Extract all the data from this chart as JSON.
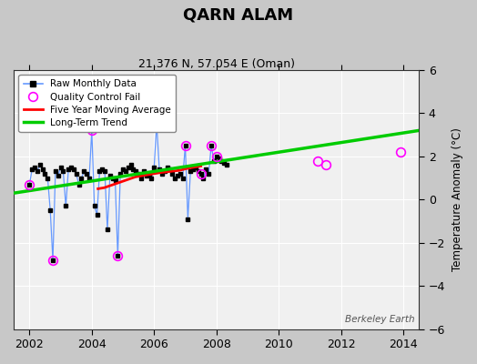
{
  "title": "QARN ALAM",
  "subtitle": "21.376 N, 57.054 E (Oman)",
  "ylabel": "Temperature Anomaly (°C)",
  "watermark": "Berkeley Earth",
  "xlim": [
    2001.5,
    2014.5
  ],
  "ylim": [
    -6,
    6
  ],
  "yticks": [
    -6,
    -4,
    -2,
    0,
    2,
    4,
    6
  ],
  "xticks": [
    2002,
    2004,
    2006,
    2008,
    2010,
    2012,
    2014
  ],
  "fig_bg_color": "#c8c8c8",
  "plot_bg_color": "#f0f0f0",
  "grid_color": "#ffffff",
  "raw_color": "#6699ff",
  "raw_marker_color": "#000000",
  "qc_color": "#ff00ff",
  "moving_avg_color": "#ff0000",
  "trend_color": "#00cc00",
  "legend_labels": [
    "Raw Monthly Data",
    "Quality Control Fail",
    "Five Year Moving Average",
    "Long-Term Trend"
  ],
  "trend_x": [
    2001.5,
    2014.5
  ],
  "trend_y": [
    0.3,
    3.2
  ],
  "moving_avg_x": [
    2004.2,
    2004.4,
    2004.6,
    2004.8,
    2005.0,
    2005.2,
    2005.4,
    2005.6,
    2005.8,
    2006.0,
    2006.2,
    2006.5,
    2006.8,
    2007.0,
    2007.2,
    2007.5
  ],
  "moving_avg_y": [
    0.5,
    0.55,
    0.65,
    0.75,
    0.85,
    0.95,
    1.05,
    1.1,
    1.15,
    1.2,
    1.25,
    1.3,
    1.35,
    1.42,
    1.48,
    1.55
  ],
  "raw_x": [
    2002.0,
    2002.083,
    2002.167,
    2002.25,
    2002.333,
    2002.417,
    2002.5,
    2002.583,
    2002.667,
    2002.75,
    2002.833,
    2002.917,
    2003.0,
    2003.083,
    2003.167,
    2003.25,
    2003.333,
    2003.417,
    2003.5,
    2003.583,
    2003.667,
    2003.75,
    2003.833,
    2003.917,
    2004.0,
    2004.083,
    2004.167,
    2004.25,
    2004.333,
    2004.417,
    2004.5,
    2004.583,
    2004.667,
    2004.75,
    2004.833,
    2004.917,
    2005.0,
    2005.083,
    2005.167,
    2005.25,
    2005.333,
    2005.417,
    2005.5,
    2005.583,
    2005.667,
    2005.75,
    2005.833,
    2005.917,
    2006.0,
    2006.083,
    2006.167,
    2006.25,
    2006.333,
    2006.417,
    2006.5,
    2006.583,
    2006.667,
    2006.75,
    2006.833,
    2006.917,
    2007.0,
    2007.083,
    2007.167,
    2007.25,
    2007.333,
    2007.417,
    2007.5,
    2007.583,
    2007.667,
    2007.75,
    2007.833,
    2007.917,
    2008.0,
    2008.083,
    2008.167,
    2008.25,
    2008.333
  ],
  "raw_y": [
    0.7,
    1.4,
    1.5,
    1.3,
    1.6,
    1.4,
    1.2,
    1.0,
    -0.5,
    -2.8,
    1.3,
    1.1,
    1.5,
    1.3,
    -0.3,
    1.4,
    1.5,
    1.4,
    1.2,
    0.7,
    1.0,
    1.3,
    1.2,
    1.0,
    3.2,
    -0.3,
    -0.7,
    1.3,
    1.4,
    1.3,
    -1.4,
    1.1,
    1.0,
    0.9,
    -2.6,
    1.2,
    1.4,
    1.3,
    1.5,
    1.6,
    1.4,
    1.3,
    1.2,
    1.0,
    1.3,
    1.1,
    1.2,
    1.0,
    1.5,
    3.5,
    1.4,
    1.2,
    1.3,
    1.5,
    1.4,
    1.2,
    1.0,
    1.1,
    1.2,
    1.0,
    2.5,
    -0.9,
    1.3,
    1.4,
    1.5,
    1.3,
    1.2,
    1.0,
    1.4,
    1.2,
    2.5,
    1.8,
    2.0,
    1.9,
    1.8,
    1.7,
    1.6
  ],
  "qc_x": [
    2002.0,
    2002.75,
    2004.0,
    2004.833,
    2006.083,
    2007.0,
    2007.5,
    2007.833,
    2008.0,
    2011.25,
    2011.5,
    2013.917
  ],
  "qc_y": [
    0.7,
    -2.8,
    3.2,
    -2.6,
    3.5,
    2.5,
    1.2,
    2.5,
    2.0,
    1.8,
    1.6,
    2.2
  ]
}
